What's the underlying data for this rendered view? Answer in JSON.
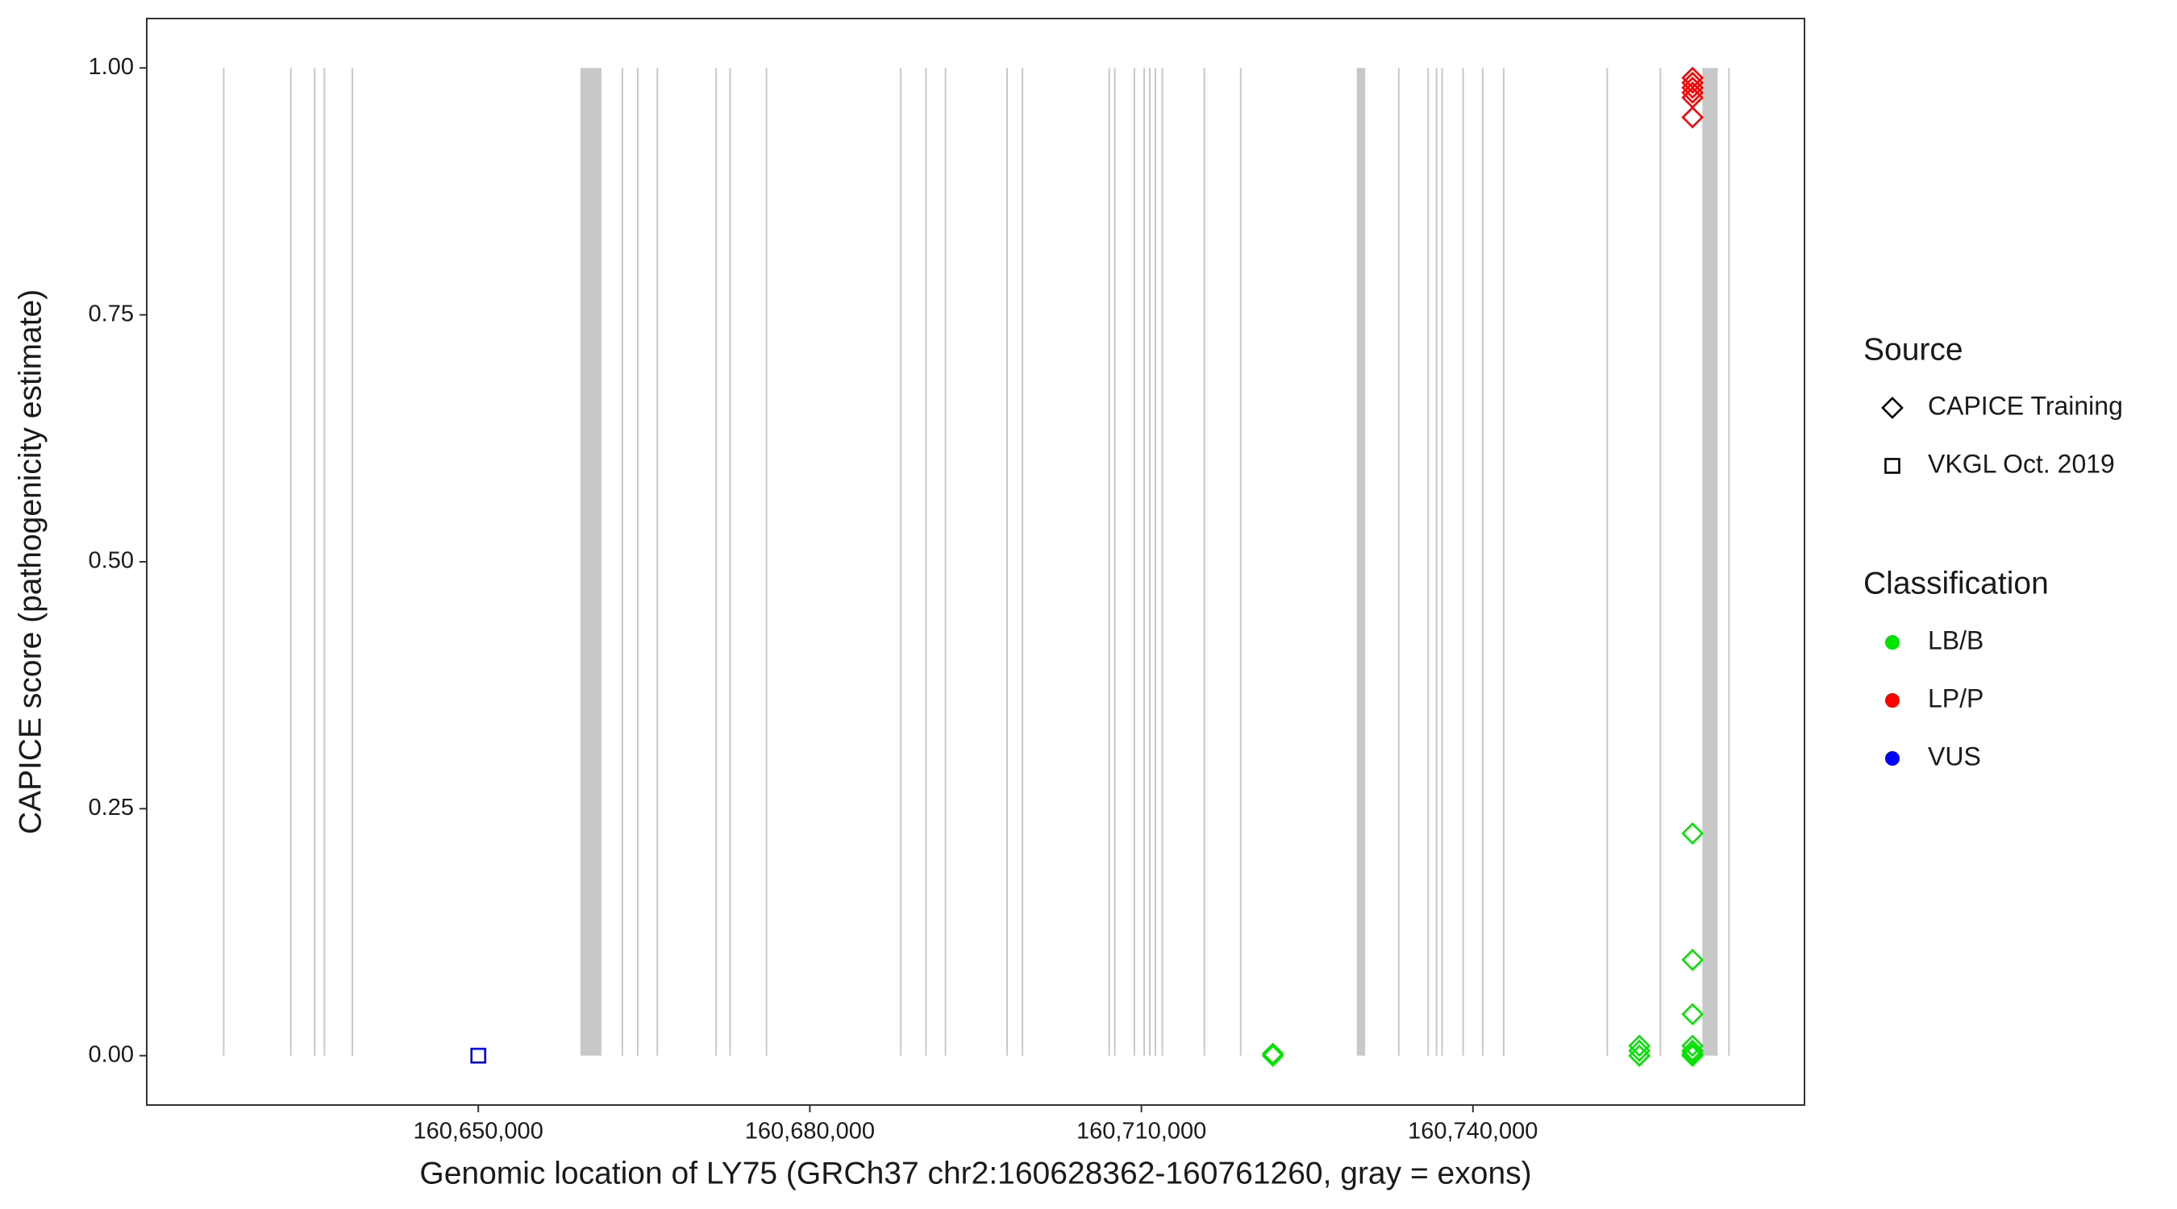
{
  "chart_data": {
    "type": "scatter",
    "x_label": "Genomic location of LY75 (GRCh37 chr2:160628362-160761260, gray = exons)",
    "y_label": "CAPICE score (pathogenicity estimate)",
    "xlim": [
      160620000,
      160770000
    ],
    "ylim": [
      -0.05,
      1.05
    ],
    "xticks": [
      {
        "value": 160650000,
        "label": "160,650,000"
      },
      {
        "value": 160680000,
        "label": "160,680,000"
      },
      {
        "value": 160710000,
        "label": "160,710,000"
      },
      {
        "value": 160740000,
        "label": "160,740,000"
      }
    ],
    "yticks": [
      {
        "value": 0,
        "label": "0.00"
      },
      {
        "value": 0.25,
        "label": "0.25"
      },
      {
        "value": 0.5,
        "label": "0.50"
      },
      {
        "value": 0.75,
        "label": "0.75"
      },
      {
        "value": 1,
        "label": "1.00"
      }
    ],
    "grid": false,
    "exon_color": "#c8c8c8",
    "exons": [
      [
        160626962,
        160626962
      ],
      [
        160633038,
        160633038
      ],
      [
        160635190,
        160635190
      ],
      [
        160636076,
        160636076
      ],
      [
        160638607,
        160638607
      ],
      [
        160659240,
        160661139
      ],
      [
        160663037,
        160663037
      ],
      [
        160664430,
        160664430
      ],
      [
        160666202,
        160666202
      ],
      [
        160671518,
        160671518
      ],
      [
        160672784,
        160672784
      ],
      [
        160676075,
        160676075
      ],
      [
        160688227,
        160688227
      ],
      [
        160690505,
        160690505
      ],
      [
        160692277,
        160692277
      ],
      [
        160697847,
        160697847
      ],
      [
        160699239,
        160699239
      ],
      [
        160707087,
        160707087
      ],
      [
        160707593,
        160707593
      ],
      [
        160709365,
        160709365
      ],
      [
        160710252,
        160710252
      ],
      [
        160710758,
        160710758
      ],
      [
        160711264,
        160711264
      ],
      [
        160711897,
        160711897
      ],
      [
        160715696,
        160715696
      ],
      [
        160718987,
        160718987
      ],
      [
        160729492,
        160730251
      ],
      [
        160733289,
        160733289
      ],
      [
        160735947,
        160735947
      ],
      [
        160736707,
        160736707
      ],
      [
        160737213,
        160737213
      ],
      [
        160739112,
        160739112
      ],
      [
        160740884,
        160740884
      ],
      [
        160742783,
        160742783
      ],
      [
        160752150,
        160752150
      ],
      [
        160756960,
        160756960
      ],
      [
        160760757,
        160762149
      ],
      [
        160763162,
        160763162
      ]
    ],
    "shape_legend": {
      "title": "Source",
      "items": [
        {
          "label": "CAPICE Training",
          "shape": "diamond"
        },
        {
          "label": "VKGL Oct. 2019",
          "shape": "square"
        }
      ]
    },
    "color_legend": {
      "title": "Classification",
      "items": [
        {
          "label": "LB/B",
          "color": "#00e400"
        },
        {
          "label": "LP/P",
          "color": "#ff0000"
        },
        {
          "label": "VUS",
          "color": "#0000ff"
        }
      ]
    },
    "series": [
      {
        "shape": "square",
        "color": "#0000ff",
        "x": [
          160650000
        ],
        "values": [
          0
        ]
      },
      {
        "shape": "diamond",
        "color": "#00e400",
        "x": [
          160721897,
          160721897,
          160755061,
          160755061,
          160755061,
          160759871,
          160759871,
          160759871,
          160759871,
          160759871,
          160759871,
          160759871
        ],
        "values": [
          0,
          0.002,
          0.01,
          0.005,
          0,
          0.225,
          0.097,
          0.042,
          0.01,
          0.005,
          0,
          0.002
        ]
      },
      {
        "shape": "diamond",
        "color": "#ff0000",
        "x": [
          160759871,
          160759871,
          160759871,
          160759871,
          160759871,
          160759871
        ],
        "values": [
          0.99,
          0.985,
          0.98,
          0.975,
          0.97,
          0.95
        ]
      }
    ]
  }
}
